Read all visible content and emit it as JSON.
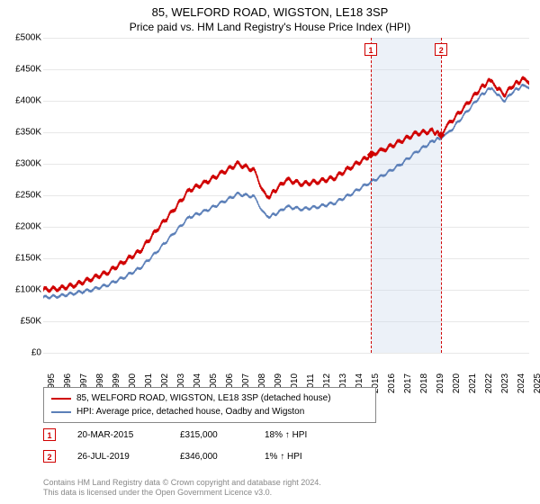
{
  "title": "85, WELFORD ROAD, WIGSTON, LE18 3SP",
  "subtitle": "Price paid vs. HM Land Registry's House Price Index (HPI)",
  "chart": {
    "type": "line",
    "background_color": "#ffffff",
    "grid_color": "#e8e8e8",
    "y_axis": {
      "min": 0,
      "max": 500000,
      "step": 50000,
      "prefix": "£",
      "ticks": [
        "£0",
        "£50K",
        "£100K",
        "£150K",
        "£200K",
        "£250K",
        "£300K",
        "£350K",
        "£400K",
        "£450K",
        "£500K"
      ]
    },
    "x_axis": {
      "min": 1995,
      "max": 2025,
      "ticks": [
        1995,
        1996,
        1997,
        1998,
        1999,
        2000,
        2001,
        2002,
        2003,
        2004,
        2005,
        2006,
        2007,
        2008,
        2009,
        2010,
        2011,
        2012,
        2013,
        2014,
        2015,
        2016,
        2017,
        2018,
        2019,
        2020,
        2021,
        2022,
        2023,
        2024,
        2025
      ]
    },
    "band": {
      "start": 2015.22,
      "end": 2019.57,
      "color": "rgba(200,215,235,0.35)"
    },
    "markers": [
      {
        "id": "1",
        "x": 2015.22,
        "y": 315000
      },
      {
        "id": "2",
        "x": 2019.57,
        "y": 346000
      }
    ],
    "series": [
      {
        "name": "85, WELFORD ROAD, WIGSTON, LE18 3SP (detached house)",
        "color": "#d00000",
        "line_width": 1.2,
        "data": [
          [
            1995,
            100000
          ],
          [
            1996,
            102000
          ],
          [
            1997,
            108000
          ],
          [
            1998,
            118000
          ],
          [
            1999,
            128000
          ],
          [
            2000,
            145000
          ],
          [
            2001,
            162000
          ],
          [
            2002,
            195000
          ],
          [
            2003,
            225000
          ],
          [
            2004,
            258000
          ],
          [
            2005,
            270000
          ],
          [
            2006,
            285000
          ],
          [
            2007,
            300000
          ],
          [
            2008,
            290000
          ],
          [
            2008.8,
            245000
          ],
          [
            2009.5,
            262000
          ],
          [
            2010,
            275000
          ],
          [
            2011,
            268000
          ],
          [
            2012,
            272000
          ],
          [
            2013,
            278000
          ],
          [
            2014,
            295000
          ],
          [
            2015,
            310000
          ],
          [
            2015.22,
            315000
          ],
          [
            2016,
            322000
          ],
          [
            2017,
            335000
          ],
          [
            2018,
            348000
          ],
          [
            2019,
            352000
          ],
          [
            2019.57,
            346000
          ],
          [
            2020,
            362000
          ],
          [
            2021,
            390000
          ],
          [
            2022,
            420000
          ],
          [
            2022.7,
            435000
          ],
          [
            2023,
            420000
          ],
          [
            2023.5,
            410000
          ],
          [
            2024,
            425000
          ],
          [
            2024.7,
            435000
          ],
          [
            2025,
            430000
          ]
        ]
      },
      {
        "name": "HPI: Average price, detached house, Oadby and Wigston",
        "color": "#5b7fb8",
        "line_width": 1.0,
        "data": [
          [
            1995,
            88000
          ],
          [
            1996,
            90000
          ],
          [
            1997,
            95000
          ],
          [
            1998,
            100000
          ],
          [
            1999,
            108000
          ],
          [
            2000,
            120000
          ],
          [
            2001,
            135000
          ],
          [
            2002,
            160000
          ],
          [
            2003,
            188000
          ],
          [
            2004,
            215000
          ],
          [
            2005,
            225000
          ],
          [
            2006,
            238000
          ],
          [
            2007,
            252000
          ],
          [
            2008,
            248000
          ],
          [
            2008.8,
            215000
          ],
          [
            2009.5,
            222000
          ],
          [
            2010,
            232000
          ],
          [
            2011,
            228000
          ],
          [
            2012,
            232000
          ],
          [
            2013,
            238000
          ],
          [
            2014,
            252000
          ],
          [
            2015,
            268000
          ],
          [
            2016,
            282000
          ],
          [
            2017,
            298000
          ],
          [
            2018,
            318000
          ],
          [
            2019,
            335000
          ],
          [
            2019.57,
            342000
          ],
          [
            2020,
            348000
          ],
          [
            2021,
            378000
          ],
          [
            2022,
            408000
          ],
          [
            2022.7,
            422000
          ],
          [
            2023,
            410000
          ],
          [
            2023.5,
            400000
          ],
          [
            2024,
            415000
          ],
          [
            2024.7,
            425000
          ],
          [
            2025,
            422000
          ]
        ]
      }
    ]
  },
  "legend": {
    "items": [
      {
        "color": "#d00000",
        "label": "85, WELFORD ROAD, WIGSTON, LE18 3SP (detached house)"
      },
      {
        "color": "#5b7fb8",
        "label": "HPI: Average price, detached house, Oadby and Wigston"
      }
    ]
  },
  "sales": [
    {
      "id": "1",
      "date": "20-MAR-2015",
      "price": "£315,000",
      "pct": "18% ↑ HPI"
    },
    {
      "id": "2",
      "date": "26-JUL-2019",
      "price": "£346,000",
      "pct": "1% ↑ HPI"
    }
  ],
  "footer": {
    "line1": "Contains HM Land Registry data © Crown copyright and database right 2024.",
    "line2": "This data is licensed under the Open Government Licence v3.0."
  }
}
